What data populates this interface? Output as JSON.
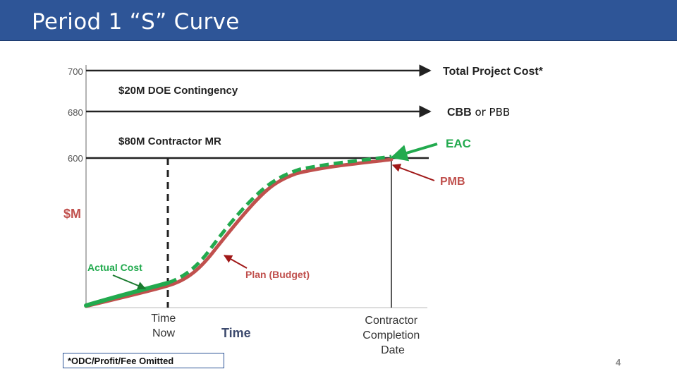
{
  "slide": {
    "title": "Period 1 “S” Curve",
    "footnote": "*ODC/Profit/Fee Omitted",
    "page_number": "4"
  },
  "colors": {
    "title_bar": "#2e5597",
    "actual_cost": "#22aa4e",
    "plan_budget": "#c0504d",
    "eac": "#22aa4e",
    "pmb": "#a01818"
  },
  "chart_data": {
    "type": "line",
    "title": "",
    "xlabel": "Time",
    "ylabel": "$M",
    "y_ticks": [
      600,
      680,
      700
    ],
    "reference_lines": [
      {
        "value": 700,
        "label": "Total Project Cost*"
      },
      {
        "value": 680,
        "label": "CBB",
        "label_suffix": " or PBB"
      },
      {
        "value": 600,
        "label": ""
      }
    ],
    "bands": [
      {
        "label": "$20M DOE Contingency",
        "between": [
          680,
          700
        ]
      },
      {
        "label": "$80M Contractor MR",
        "between": [
          600,
          680
        ]
      }
    ],
    "x_markers": [
      {
        "label_line1": "Time",
        "label_line2": "Now",
        "label_line3": ""
      },
      {
        "label_line1": "Contractor",
        "label_line2": "Completion",
        "label_line3": "Date"
      }
    ],
    "series": [
      {
        "name": "Actual Cost"
      },
      {
        "name": "Plan (Budget)"
      }
    ],
    "annotations": {
      "eac": "EAC",
      "pmb": "PMB"
    }
  }
}
